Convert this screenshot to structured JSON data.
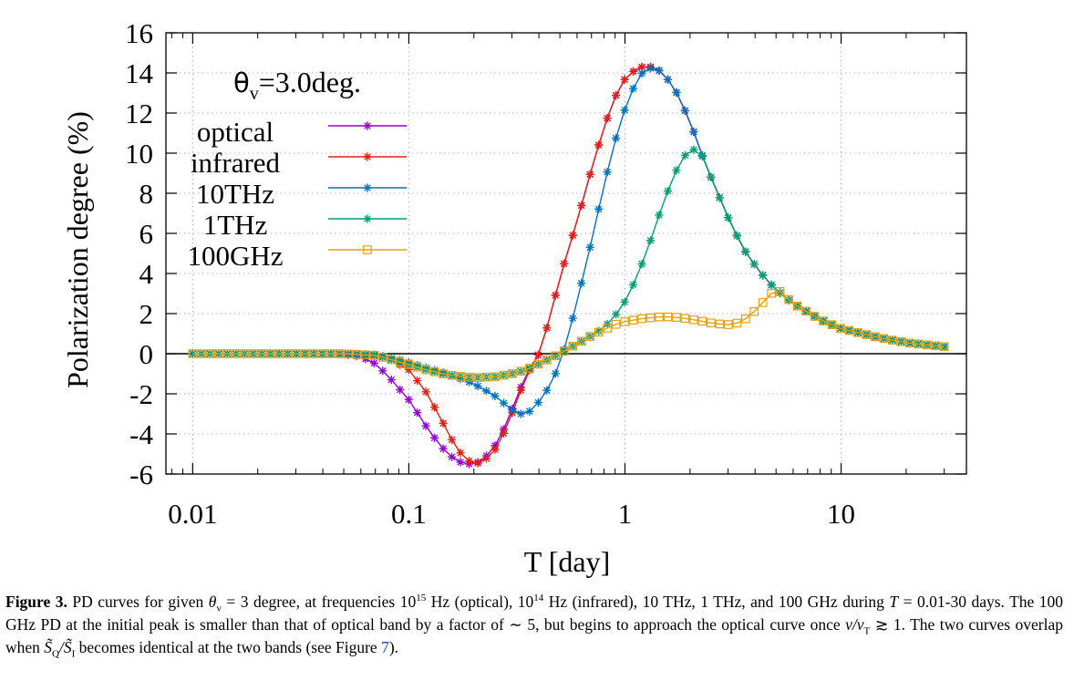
{
  "chart_data": {
    "type": "line",
    "title": "",
    "annotation_prefix": "θ",
    "annotation_sub": "v",
    "annotation_suffix": "=3.0deg.",
    "xlabel": "T [day]",
    "ylabel": "Polarization degree (%)",
    "xscale": "log",
    "xlim": [
      0.00752,
      38
    ],
    "ylim": [
      -6,
      16
    ],
    "xticks": [
      {
        "value": 0.01,
        "label": "0.01"
      },
      {
        "value": 0.1,
        "label": "0.1"
      },
      {
        "value": 1,
        "label": "1"
      },
      {
        "value": 10,
        "label": "10"
      }
    ],
    "yticks": [
      {
        "value": -6,
        "label": "-6"
      },
      {
        "value": -4,
        "label": "-4"
      },
      {
        "value": -2,
        "label": "-2"
      },
      {
        "value": 0,
        "label": "0"
      },
      {
        "value": 2,
        "label": "2"
      },
      {
        "value": 4,
        "label": "4"
      },
      {
        "value": 6,
        "label": "6"
      },
      {
        "value": 8,
        "label": "8"
      },
      {
        "value": 10,
        "label": "10"
      },
      {
        "value": 12,
        "label": "12"
      },
      {
        "value": 14,
        "label": "14"
      },
      {
        "value": 16,
        "label": "16"
      }
    ],
    "grid": true,
    "zero_line": true,
    "legend_position": "top-left",
    "x_range": [
      0.01,
      30
    ],
    "samples_per_decade": 25,
    "series": [
      {
        "name": "optical",
        "color": "#9400d3",
        "marker": "asterisk",
        "points": [
          [
            0.01,
            0
          ],
          [
            0.03,
            0
          ],
          [
            0.05,
            -0.02
          ],
          [
            0.06,
            -0.15
          ],
          [
            0.07,
            -0.5
          ],
          [
            0.08,
            -1.1
          ],
          [
            0.1,
            -2.3
          ],
          [
            0.12,
            -3.6
          ],
          [
            0.14,
            -4.6
          ],
          [
            0.16,
            -5.2
          ],
          [
            0.18,
            -5.5
          ],
          [
            0.2,
            -5.5
          ],
          [
            0.22,
            -5.3
          ],
          [
            0.25,
            -4.6
          ],
          [
            0.28,
            -3.6
          ],
          [
            0.31,
            -2.4
          ],
          [
            0.35,
            -1.0
          ],
          [
            0.4,
            0.0
          ],
          [
            0.45,
            1.8
          ],
          [
            0.5,
            3.8
          ],
          [
            0.6,
            6.6
          ],
          [
            0.7,
            9.2
          ],
          [
            0.8,
            11.3
          ],
          [
            0.9,
            12.8
          ],
          [
            1.0,
            13.7
          ],
          [
            1.1,
            14.1
          ],
          [
            1.2,
            14.3
          ],
          [
            1.35,
            14.3
          ],
          [
            1.5,
            14.0
          ],
          [
            1.7,
            13.2
          ],
          [
            2.0,
            11.6
          ],
          [
            2.2,
            10.3
          ],
          [
            2.5,
            8.8
          ],
          [
            3.0,
            6.8
          ],
          [
            3.5,
            5.3
          ],
          [
            4.0,
            4.4
          ],
          [
            4.5,
            3.7
          ],
          [
            5.0,
            3.2
          ],
          [
            6.0,
            2.5
          ],
          [
            8.0,
            1.7
          ],
          [
            10.0,
            1.25
          ],
          [
            15.0,
            0.8
          ],
          [
            20.0,
            0.55
          ],
          [
            30.0,
            0.35
          ]
        ]
      },
      {
        "name": "infrared",
        "color": "#e51e10",
        "marker": "asterisk",
        "points": [
          [
            0.01,
            0
          ],
          [
            0.04,
            0
          ],
          [
            0.06,
            -0.02
          ],
          [
            0.08,
            -0.2
          ],
          [
            0.1,
            -0.8
          ],
          [
            0.12,
            -1.9
          ],
          [
            0.14,
            -3.2
          ],
          [
            0.16,
            -4.4
          ],
          [
            0.18,
            -5.2
          ],
          [
            0.2,
            -5.5
          ],
          [
            0.22,
            -5.4
          ],
          [
            0.25,
            -4.8
          ],
          [
            0.28,
            -3.8
          ],
          [
            0.31,
            -2.6
          ],
          [
            0.35,
            -1.1
          ],
          [
            0.4,
            0.0
          ],
          [
            0.45,
            1.8
          ],
          [
            0.5,
            3.8
          ],
          [
            0.6,
            6.6
          ],
          [
            0.7,
            9.2
          ],
          [
            0.8,
            11.3
          ],
          [
            0.9,
            12.8
          ],
          [
            1.0,
            13.7
          ],
          [
            1.1,
            14.1
          ],
          [
            1.2,
            14.3
          ],
          [
            1.35,
            14.3
          ],
          [
            1.5,
            14.0
          ],
          [
            1.7,
            13.2
          ],
          [
            2.0,
            11.6
          ],
          [
            2.2,
            10.3
          ],
          [
            2.5,
            8.8
          ],
          [
            3.0,
            6.8
          ],
          [
            3.5,
            5.3
          ],
          [
            4.0,
            4.4
          ],
          [
            4.5,
            3.7
          ],
          [
            5.0,
            3.2
          ],
          [
            6.0,
            2.5
          ],
          [
            8.0,
            1.7
          ],
          [
            10.0,
            1.25
          ],
          [
            15.0,
            0.8
          ],
          [
            20.0,
            0.55
          ],
          [
            30.0,
            0.35
          ]
        ]
      },
      {
        "name": "10THz",
        "color": "#0072bd",
        "marker": "asterisk",
        "points": [
          [
            0.01,
            0
          ],
          [
            0.05,
            0
          ],
          [
            0.07,
            -0.05
          ],
          [
            0.09,
            -0.3
          ],
          [
            0.12,
            -0.7
          ],
          [
            0.15,
            -1.0
          ],
          [
            0.2,
            -1.5
          ],
          [
            0.25,
            -2.1
          ],
          [
            0.3,
            -2.8
          ],
          [
            0.33,
            -3.0
          ],
          [
            0.36,
            -2.9
          ],
          [
            0.4,
            -2.4
          ],
          [
            0.45,
            -1.6
          ],
          [
            0.5,
            -0.5
          ],
          [
            0.55,
            1.0
          ],
          [
            0.6,
            2.6
          ],
          [
            0.7,
            5.6
          ],
          [
            0.8,
            8.4
          ],
          [
            0.9,
            10.6
          ],
          [
            1.0,
            12.2
          ],
          [
            1.1,
            13.3
          ],
          [
            1.2,
            14.0
          ],
          [
            1.35,
            14.3
          ],
          [
            1.5,
            14.0
          ],
          [
            1.7,
            13.2
          ],
          [
            2.0,
            11.6
          ],
          [
            2.2,
            10.3
          ],
          [
            2.5,
            8.8
          ],
          [
            3.0,
            6.8
          ],
          [
            3.5,
            5.3
          ],
          [
            4.0,
            4.4
          ],
          [
            4.5,
            3.7
          ],
          [
            5.0,
            3.2
          ],
          [
            6.0,
            2.5
          ],
          [
            8.0,
            1.7
          ],
          [
            10.0,
            1.25
          ],
          [
            15.0,
            0.8
          ],
          [
            20.0,
            0.55
          ],
          [
            30.0,
            0.35
          ]
        ]
      },
      {
        "name": "1THz",
        "color": "#009e73",
        "marker": "asterisk",
        "points": [
          [
            0.01,
            0
          ],
          [
            0.05,
            0
          ],
          [
            0.07,
            -0.08
          ],
          [
            0.09,
            -0.4
          ],
          [
            0.12,
            -0.8
          ],
          [
            0.15,
            -1.05
          ],
          [
            0.2,
            -1.2
          ],
          [
            0.25,
            -1.15
          ],
          [
            0.3,
            -1.0
          ],
          [
            0.35,
            -0.8
          ],
          [
            0.4,
            -0.5
          ],
          [
            0.5,
            0.0
          ],
          [
            0.6,
            0.5
          ],
          [
            0.7,
            0.9
          ],
          [
            0.8,
            1.3
          ],
          [
            0.9,
            1.9
          ],
          [
            1.0,
            2.6
          ],
          [
            1.1,
            3.5
          ],
          [
            1.2,
            4.5
          ],
          [
            1.35,
            6.0
          ],
          [
            1.5,
            7.5
          ],
          [
            1.7,
            9.0
          ],
          [
            1.9,
            9.9
          ],
          [
            2.1,
            10.2
          ],
          [
            2.25,
            10.0
          ],
          [
            2.5,
            8.8
          ],
          [
            3.0,
            6.8
          ],
          [
            3.5,
            5.3
          ],
          [
            4.0,
            4.4
          ],
          [
            4.5,
            3.7
          ],
          [
            5.0,
            3.2
          ],
          [
            6.0,
            2.5
          ],
          [
            8.0,
            1.7
          ],
          [
            10.0,
            1.25
          ],
          [
            15.0,
            0.8
          ],
          [
            20.0,
            0.55
          ],
          [
            30.0,
            0.35
          ]
        ]
      },
      {
        "name": "100GHz",
        "color": "#e6a010",
        "marker": "square",
        "points": [
          [
            0.01,
            0
          ],
          [
            0.05,
            0
          ],
          [
            0.07,
            -0.08
          ],
          [
            0.09,
            -0.4
          ],
          [
            0.12,
            -0.8
          ],
          [
            0.15,
            -1.05
          ],
          [
            0.2,
            -1.2
          ],
          [
            0.25,
            -1.15
          ],
          [
            0.3,
            -1.0
          ],
          [
            0.35,
            -0.8
          ],
          [
            0.4,
            -0.5
          ],
          [
            0.5,
            0.0
          ],
          [
            0.6,
            0.5
          ],
          [
            0.7,
            0.9
          ],
          [
            0.8,
            1.2
          ],
          [
            0.9,
            1.45
          ],
          [
            1.0,
            1.6
          ],
          [
            1.2,
            1.75
          ],
          [
            1.5,
            1.85
          ],
          [
            1.8,
            1.8
          ],
          [
            2.2,
            1.65
          ],
          [
            2.6,
            1.5
          ],
          [
            3.0,
            1.45
          ],
          [
            3.4,
            1.55
          ],
          [
            3.8,
            1.9
          ],
          [
            4.3,
            2.5
          ],
          [
            4.8,
            3.05
          ],
          [
            5.1,
            3.2
          ],
          [
            6.0,
            2.5
          ],
          [
            8.0,
            1.7
          ],
          [
            10.0,
            1.25
          ],
          [
            15.0,
            0.8
          ],
          [
            20.0,
            0.55
          ],
          [
            30.0,
            0.35
          ]
        ]
      }
    ]
  },
  "caption": {
    "label": "Figure 3.",
    "segments": [
      {
        "t": "text",
        "v": " PD curves for given "
      },
      {
        "t": "i",
        "v": "θ"
      },
      {
        "t": "sub",
        "v": "v"
      },
      {
        "t": "text",
        "v": " = 3 degree, at frequencies 10"
      },
      {
        "t": "sup",
        "v": "15"
      },
      {
        "t": "text",
        "v": " Hz (optical), 10"
      },
      {
        "t": "sup",
        "v": "14"
      },
      {
        "t": "text",
        "v": " Hz (infrared), 10 THz, 1 THz, and 100 GHz during "
      },
      {
        "t": "i",
        "v": "T"
      },
      {
        "t": "text",
        "v": " = 0.01-30 days. The 100 GHz PD at the initial peak is smaller than that of optical band by a factor of ∼ 5, but begins to approach the optical curve once "
      },
      {
        "t": "i",
        "v": "ν/ν"
      },
      {
        "t": "sub",
        "v": "T"
      },
      {
        "t": "text",
        "v": " ≳ 1. The two curves overlap when "
      },
      {
        "t": "i",
        "v": "S̃"
      },
      {
        "t": "sub",
        "v": "Q"
      },
      {
        "t": "i",
        "v": "/S̃"
      },
      {
        "t": "sub",
        "v": "I"
      },
      {
        "t": "text",
        "v": " becomes identical at the two bands (see Figure "
      },
      {
        "t": "ref",
        "v": "7"
      },
      {
        "t": "text",
        "v": ")."
      }
    ]
  }
}
